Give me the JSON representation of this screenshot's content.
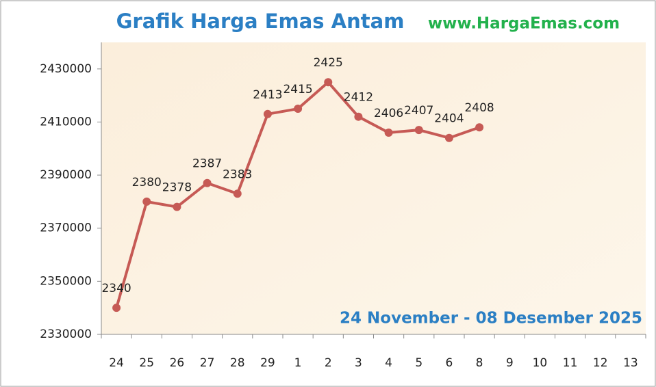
{
  "chart_data": {
    "type": "line",
    "title": "Grafik Harga Emas Antam",
    "source": "www.HargaEmas.com",
    "subtitle": "24 November - 08 Desember 2025",
    "categories": [
      "24",
      "25",
      "26",
      "27",
      "28",
      "29",
      "1",
      "2",
      "3",
      "4",
      "5",
      "6",
      "8",
      "9",
      "10",
      "11",
      "12",
      "13"
    ],
    "series": [
      {
        "color": "#c65a55",
        "values": [
          2340000,
          2380000,
          2378000,
          2387000,
          2383000,
          2413000,
          2415000,
          2425000,
          2412000,
          2406000,
          2407000,
          2404000,
          2408000,
          null,
          null,
          null,
          null,
          null
        ],
        "value_labels": [
          "2340",
          "2380",
          "2378",
          "2387",
          "2383",
          "2413",
          "2415",
          "2425",
          "2412",
          "2406",
          "2407",
          "2404",
          "2408",
          null,
          null,
          null,
          null,
          null
        ]
      }
    ],
    "ylim": [
      2330000,
      2440000
    ],
    "yticks": [
      2330000,
      2350000,
      2370000,
      2390000,
      2410000,
      2430000
    ],
    "grid": false
  }
}
